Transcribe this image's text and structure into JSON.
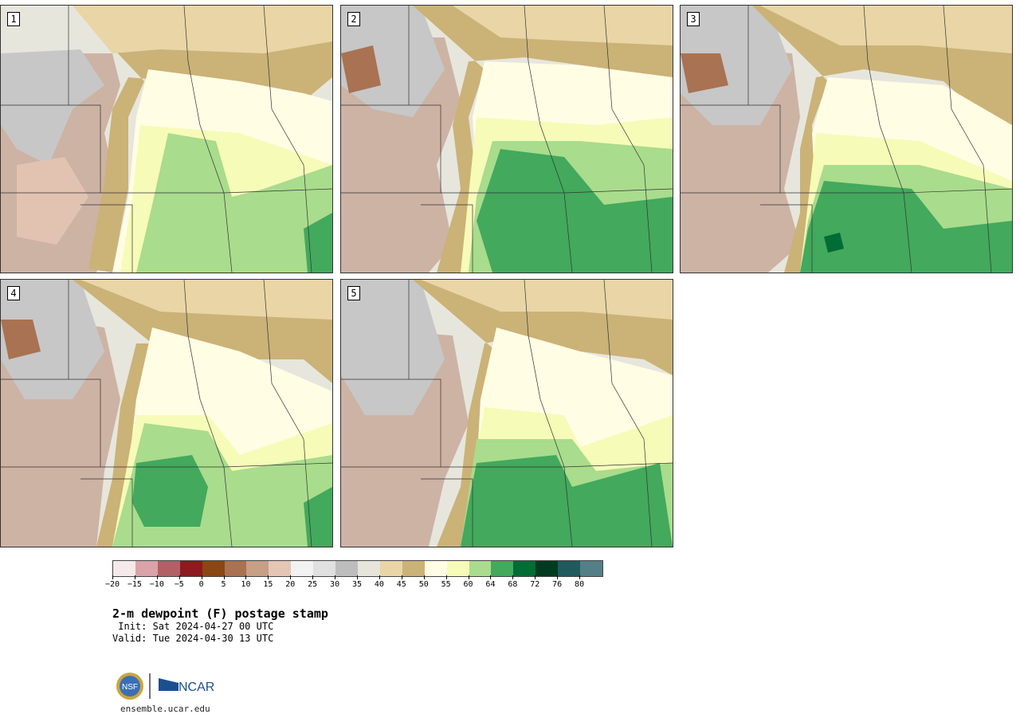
{
  "panels": [
    {
      "label": "1"
    },
    {
      "label": "2"
    },
    {
      "label": "3"
    },
    {
      "label": "4"
    },
    {
      "label": "5"
    }
  ],
  "colorbar": {
    "colors": [
      "#f6e9ea",
      "#d9a3a9",
      "#b35f66",
      "#8c1a1e",
      "#8a4714",
      "#a97252",
      "#c79f86",
      "#e3c7b4",
      "#f2f2f2",
      "#e0e0e0",
      "#bdbdbd",
      "#e5e5d9",
      "#e9d5a6",
      "#cbb277",
      "#fffde4",
      "#f7fbb8",
      "#a9dc8c",
      "#42a95d",
      "#006d35",
      "#003b20",
      "#1f5a5f",
      "#547f87"
    ],
    "tick_labels": [
      "−20",
      "−15",
      "−10",
      "−5",
      "0",
      "5",
      "10",
      "15",
      "20",
      "25",
      "30",
      "35",
      "40",
      "45",
      "50",
      "55",
      "60",
      "64",
      "68",
      "72",
      "76",
      "80"
    ]
  },
  "title": "2-m dewpoint (F) postage stamp",
  "init": " Init: Sat 2024-04-27 00 UTC",
  "valid": "Valid: Tue 2024-04-30 13 UTC",
  "logo": {
    "left_text": "NSF",
    "right_text": "NCAR"
  },
  "website": "ensemble.ucar.edu"
}
